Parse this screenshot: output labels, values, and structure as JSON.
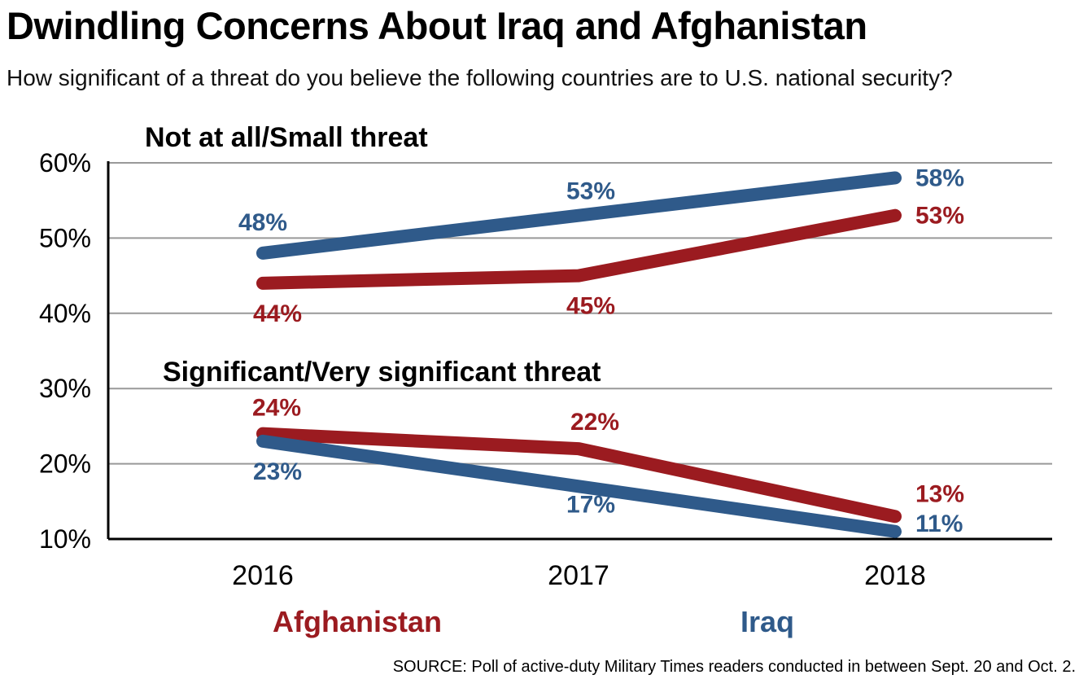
{
  "title": "Dwindling Concerns About Iraq and Afghanistan",
  "subtitle": "How significant of a threat do you believe the following countries are to U.S. national security?",
  "source": "SOURCE: Poll of active-duty Military Times readers conducted in between Sept. 20 and Oct. 2.",
  "colors": {
    "afghanistan": "#9b1b20",
    "iraq": "#2f5a8a",
    "grid": "#999999"
  },
  "chart_data": {
    "type": "line",
    "x": [
      "2016",
      "2017",
      "2018"
    ],
    "ylim": [
      10,
      60
    ],
    "yticks": [
      10,
      20,
      30,
      40,
      50,
      60
    ],
    "ytick_labels": [
      "10%",
      "20%",
      "30%",
      "40%",
      "50%",
      "60%"
    ],
    "grid": true,
    "legend": [
      {
        "name": "Afghanistan",
        "color": "#9b1b20"
      },
      {
        "name": "Iraq",
        "color": "#2f5a8a"
      }
    ],
    "groups": [
      {
        "label": "Not at all/Small threat",
        "series": [
          {
            "name": "Iraq",
            "color": "#2f5a8a",
            "values": [
              48,
              53,
              58
            ],
            "labels": [
              "48%",
              "53%",
              "58%"
            ]
          },
          {
            "name": "Afghanistan",
            "color": "#9b1b20",
            "values": [
              44,
              45,
              53
            ],
            "labels": [
              "44%",
              "45%",
              "53%"
            ]
          }
        ]
      },
      {
        "label": "Significant/Very significant threat",
        "series": [
          {
            "name": "Afghanistan",
            "color": "#9b1b20",
            "values": [
              24,
              22,
              13
            ],
            "labels": [
              "24%",
              "22%",
              "13%"
            ]
          },
          {
            "name": "Iraq",
            "color": "#2f5a8a",
            "values": [
              23,
              17,
              11
            ],
            "labels": [
              "23%",
              "17%",
              "11%"
            ]
          }
        ]
      }
    ]
  }
}
